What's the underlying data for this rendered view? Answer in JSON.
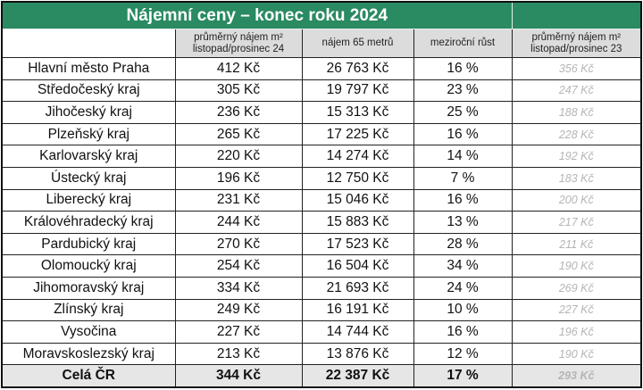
{
  "title": "Nájemní ceny – konec roku 2024",
  "headers": [
    "",
    "průměrný nájem m² listopad/prosinec 24",
    "nájem 65 metrů",
    "meziroční růst",
    "průměrný nájem m² listopad/prosinec 23"
  ],
  "rows": [
    [
      "Hlavní město Praha",
      "412 Kč",
      "26 763 Kč",
      "16 %",
      "356 Kč"
    ],
    [
      "Středočeský kraj",
      "305 Kč",
      "19 797 Kč",
      "23 %",
      "247 Kč"
    ],
    [
      "Jihočeský kraj",
      "236 Kč",
      "15 313 Kč",
      "25 %",
      "188 Kč"
    ],
    [
      "Plzeňský kraj",
      "265 Kč",
      "17 225 Kč",
      "16 %",
      "228 Kč"
    ],
    [
      "Karlovarský kraj",
      "220 Kč",
      "14 274 Kč",
      "14 %",
      "192 Kč"
    ],
    [
      "Ústecký kraj",
      "196 Kč",
      "12 750 Kč",
      "7 %",
      "183 Kč"
    ],
    [
      "Liberecký kraj",
      "231 Kč",
      "15 046 Kč",
      "16 %",
      "200 Kč"
    ],
    [
      "Královéhradecký kraj",
      "244 Kč",
      "15 883 Kč",
      "13 %",
      "217 Kč"
    ],
    [
      "Pardubický kraj",
      "270 Kč",
      "17 523 Kč",
      "28 %",
      "211 Kč"
    ],
    [
      "Olomoucký kraj",
      "254 Kč",
      "16 504 Kč",
      "34 %",
      "190 Kč"
    ],
    [
      "Jihomoravský kraj",
      "334 Kč",
      "21 693 Kč",
      "24 %",
      "269 Kč"
    ],
    [
      "Zlínský kraj",
      "249 Kč",
      "16 191 Kč",
      "10 %",
      "227 Kč"
    ],
    [
      "Vysočina",
      "227 Kč",
      "14 744 Kč",
      "16 %",
      "196 Kč"
    ],
    [
      "Moravskoslezský kraj",
      "213 Kč",
      "13 876 Kč",
      "12 %",
      "190 Kč"
    ]
  ],
  "total": [
    "Celá ČR",
    "344 Kč",
    "22 387 Kč",
    "17 %",
    "293 Kč"
  ],
  "colors": {
    "title_bg": "#2a8a62",
    "header_bg": "#dcdcdc",
    "total_bg": "#e6e6e6",
    "prev_text": "#b5b5b5"
  }
}
